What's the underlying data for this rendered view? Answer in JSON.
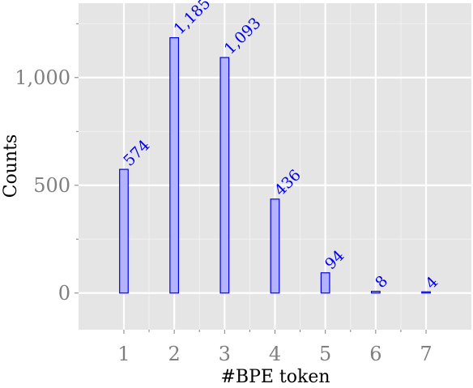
{
  "chart_data": {
    "type": "bar",
    "categories": [
      "1",
      "2",
      "3",
      "4",
      "5",
      "6",
      "7"
    ],
    "values": [
      574,
      1185,
      1093,
      436,
      94,
      8,
      4
    ],
    "data_labels": [
      "574",
      "1,185",
      "1,093",
      "436",
      "94",
      "8",
      "4"
    ],
    "xlabel": "#BPE token",
    "ylabel": "Counts",
    "xlim": [
      0.1,
      7.9
    ],
    "ylim": [
      -170,
      1345
    ],
    "yticks": [
      0,
      500,
      1000
    ],
    "ytick_labels": [
      "0",
      "500",
      "1,000"
    ],
    "grid": true,
    "legend": "none",
    "colors": {
      "panel_background": "#e5e5e5",
      "grid_major": "#ffffff",
      "grid_minor": "#f2f2f2",
      "bar_fill": "#b3b3ff",
      "bar_stroke": "#0000ee",
      "data_label": "#0000ee",
      "tick_label": "#7f7f7f",
      "axis_title": "#000000"
    }
  }
}
